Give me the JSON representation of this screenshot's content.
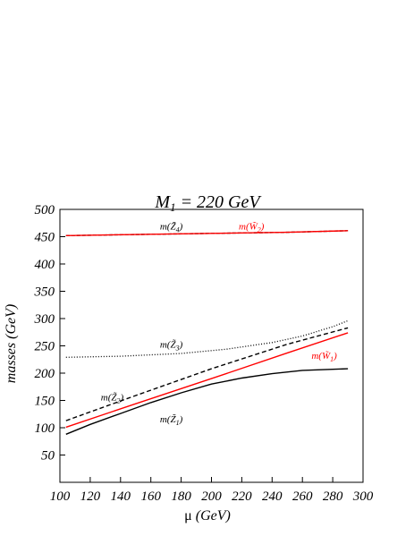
{
  "chart_data": {
    "type": "line",
    "title": "M₁ = 220 GeV",
    "title_parts": {
      "main": "M",
      "sub": "1",
      "rest": " = 220 GeV"
    },
    "xlabel": "μ (GeV)",
    "xlabel_parts": {
      "mu": "μ",
      "rest": " (GeV)"
    },
    "ylabel": "masses (GeV)",
    "xlim": [
      100,
      300
    ],
    "ylim": [
      0,
      500
    ],
    "xticks": [
      100,
      120,
      140,
      160,
      180,
      200,
      220,
      240,
      260,
      280,
      300
    ],
    "yticks": [
      50,
      100,
      150,
      200,
      250,
      300,
      350,
      400,
      450,
      500
    ],
    "grid": false,
    "series": [
      {
        "label": "m(Z̃₄)",
        "color": "#000000",
        "style": "dashed-fine",
        "x": [
          104,
          150,
          200,
          250,
          290
        ],
        "y": [
          452,
          454,
          456,
          458,
          461
        ]
      },
      {
        "label": "m(W̃₂)",
        "color": "#ff0000",
        "style": "solid",
        "x": [
          104,
          150,
          200,
          250,
          290
        ],
        "y": [
          452,
          454,
          456,
          458,
          461
        ]
      },
      {
        "label": "m(Z̃₃)",
        "color": "#000000",
        "style": "dotted",
        "x": [
          104,
          140,
          180,
          210,
          240,
          260,
          280,
          290
        ],
        "y": [
          229,
          231,
          236,
          244,
          256,
          268,
          285,
          296
        ]
      },
      {
        "label": "m(Z̃₂)",
        "color": "#000000",
        "style": "dashed",
        "x": [
          104,
          150,
          200,
          250,
          290
        ],
        "y": [
          113,
          159,
          208,
          253,
          283
        ]
      },
      {
        "label": "m(W̃₁)",
        "color": "#ff0000",
        "style": "solid",
        "x": [
          104,
          150,
          200,
          250,
          290
        ],
        "y": [
          101,
          144,
          190,
          237,
          274
        ]
      },
      {
        "label": "m(Z̃₁)",
        "color": "#000000",
        "style": "solid",
        "x": [
          104,
          120,
          140,
          160,
          180,
          200,
          220,
          240,
          260,
          290
        ],
        "y": [
          88,
          106,
          126,
          146,
          164,
          180,
          191,
          199,
          205,
          208
        ]
      }
    ],
    "annotations": [
      {
        "text": "m(Z̃₄)",
        "color": "#000000",
        "x": 166,
        "y": 463
      },
      {
        "text": "m(W̃₂)",
        "color": "#ff0000",
        "x": 218,
        "y": 463
      },
      {
        "text": "m(Z̃₃)",
        "color": "#000000",
        "x": 166,
        "y": 247
      },
      {
        "text": "m(W̃₁)",
        "color": "#ff0000",
        "x": 266,
        "y": 226
      },
      {
        "text": "m(Z̃₂)",
        "color": "#000000",
        "x": 127,
        "y": 150
      },
      {
        "text": "m(Z̃₁)",
        "color": "#000000",
        "x": 166,
        "y": 110
      }
    ]
  }
}
